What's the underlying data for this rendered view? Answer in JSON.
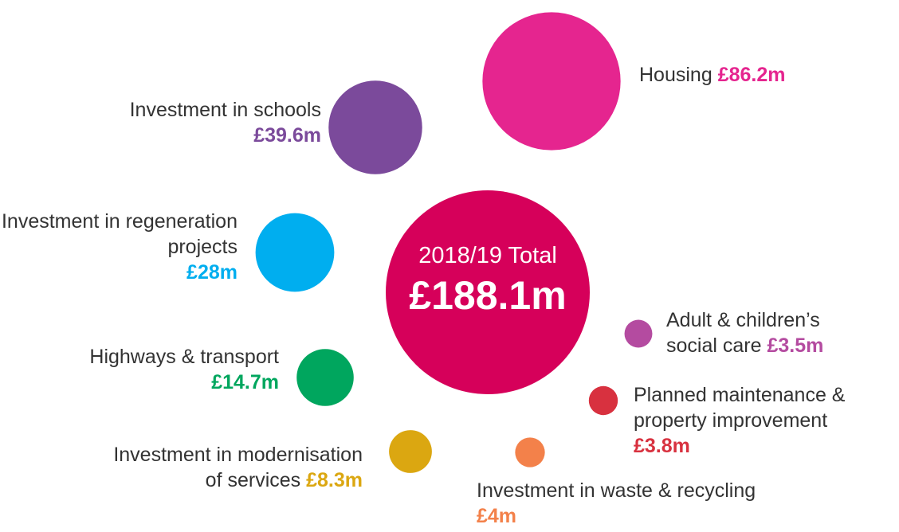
{
  "chart_data": {
    "type": "bubble",
    "total": {
      "label": "2018/19 Total",
      "value": 188.1,
      "value_label": "£188.1m",
      "color": "#d6005a"
    },
    "series": [
      {
        "name": "Housing",
        "value": 86.2,
        "value_label": "£86.2m",
        "color": "#e5258f"
      },
      {
        "name": "Investment in schools",
        "value": 39.6,
        "value_label": "£39.6m",
        "color": "#7b4a9b"
      },
      {
        "name": "Investment in regeneration projects",
        "value": 28,
        "value_label": "£28m",
        "color": "#00aeef"
      },
      {
        "name": "Highways & transport",
        "value": 14.7,
        "value_label": "£14.7m",
        "color": "#00a65e"
      },
      {
        "name": "Investment in modernisation of services",
        "value": 8.3,
        "value_label": "£8.3m",
        "color": "#dba711"
      },
      {
        "name": "Investment in waste & recycling",
        "value": 4,
        "value_label": "£4m",
        "color": "#f3814a"
      },
      {
        "name": "Planned maintenance & property improvement",
        "value": 3.8,
        "value_label": "£3.8m",
        "color": "#d8313f"
      },
      {
        "name": "Adult & children’s social care",
        "value": 3.5,
        "value_label": "£3.5m",
        "color": "#b44ba0"
      }
    ]
  }
}
